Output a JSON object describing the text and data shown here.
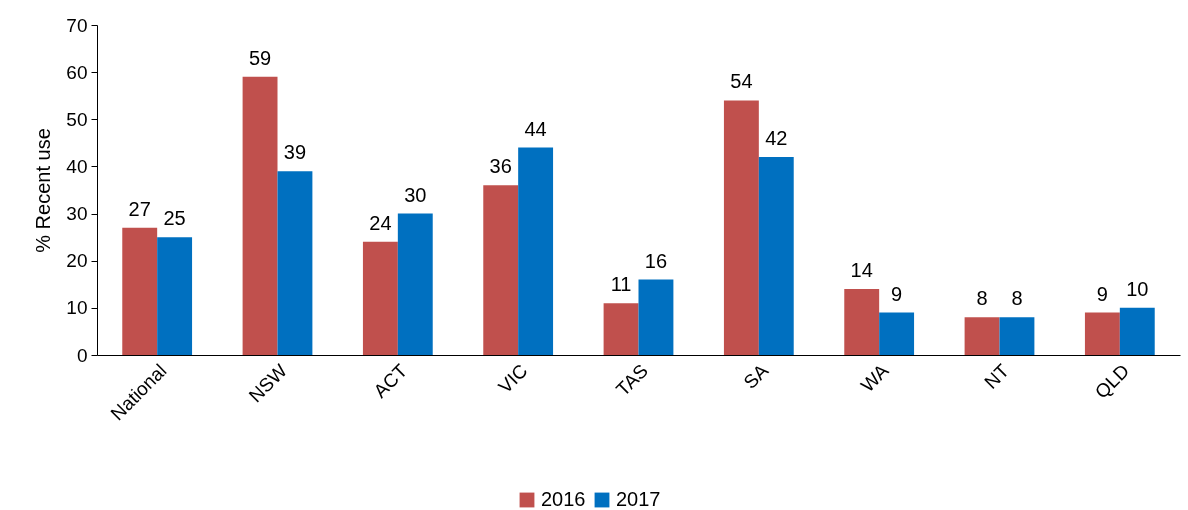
{
  "chart_data": {
    "type": "bar",
    "ylabel": "% Recent use",
    "categories": [
      "National",
      "NSW",
      "ACT",
      "VIC",
      "TAS",
      "SA",
      "WA",
      "NT",
      "QLD"
    ],
    "series": [
      {
        "name": "2016",
        "color": "#c0504d",
        "values": [
          27,
          59,
          24,
          36,
          11,
          54,
          14,
          8,
          9
        ]
      },
      {
        "name": "2017",
        "color": "#0070c0",
        "values": [
          25,
          39,
          30,
          44,
          16,
          42,
          9,
          8,
          10
        ]
      }
    ],
    "ylim": [
      0,
      70
    ],
    "yticks": [
      0,
      10,
      20,
      30,
      40,
      50,
      60,
      70
    ],
    "data_labels": true,
    "legend": "bottom"
  }
}
